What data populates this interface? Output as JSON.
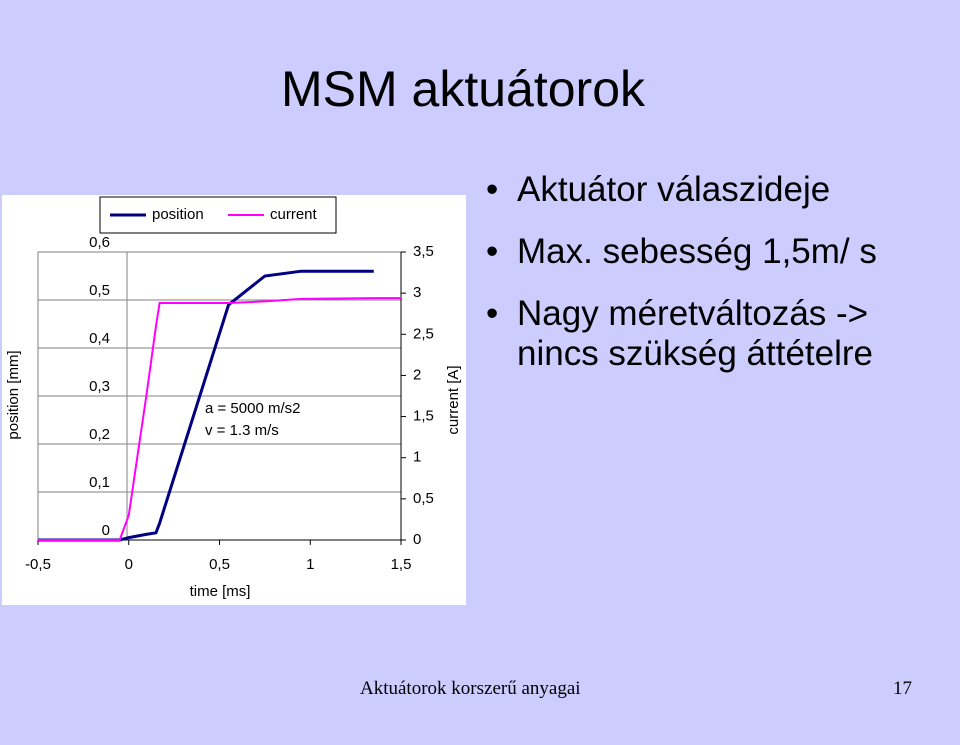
{
  "title": "MSM aktuátorok",
  "bullets": [
    "Aktuátor válaszideje",
    "Max. sebesség 1,5m/ s",
    "Nagy méretváltozás -> nincs szükség áttételre"
  ],
  "footer": {
    "text": "Aktuátorok korszerű anyagai",
    "page": "17"
  },
  "chart_data": {
    "type": "line",
    "xlabel": "time [ms]",
    "ylabel": "position [mm]",
    "y2label": "current [A]",
    "annotations": [
      "a = 5000 m/s2",
      "v = 1.3 m/s"
    ],
    "x": [
      -0.5,
      -0.05,
      0,
      0.1,
      0.15,
      0.17,
      0.55,
      0.75,
      0.95,
      1.35,
      1.5
    ],
    "series": [
      {
        "name": "position",
        "color": "#000080",
        "values": [
          0,
          0,
          0.005,
          0.012,
          0.015,
          0.035,
          0.49,
          0.55,
          0.56,
          0.56,
          null
        ]
      },
      {
        "name": "current",
        "color": "#ff00ff",
        "axis": "y2",
        "values": [
          0,
          0,
          0.3,
          1.8,
          2.6,
          2.88,
          2.88,
          2.9,
          2.93,
          2.94,
          2.94
        ]
      }
    ],
    "xlim": [
      -0.5,
      1.5
    ],
    "xticks": [
      {
        "value": -0.5,
        "label": "-0,5"
      },
      0,
      {
        "value": 0.5,
        "label": "0,5"
      },
      1,
      {
        "value": 1.5,
        "label": "1,5"
      }
    ],
    "ylim": [
      0,
      0.6
    ],
    "yticks": [
      0,
      {
        "value": 0.1,
        "label": "0,1"
      },
      {
        "value": 0.2,
        "label": "0,2"
      },
      {
        "value": 0.3,
        "label": "0,3"
      },
      {
        "value": 0.4,
        "label": "0,4"
      },
      {
        "value": 0.5,
        "label": "0,5"
      },
      {
        "value": 0.6,
        "label": "0,6"
      }
    ],
    "y2lim": [
      0,
      3.5
    ],
    "y2ticks": [
      0,
      {
        "value": 0.5,
        "label": "0,5"
      },
      1,
      {
        "value": 1.5,
        "label": "1,5"
      },
      2,
      {
        "value": 2.5,
        "label": "2,5"
      },
      3,
      {
        "value": 3.5,
        "label": "3,5"
      }
    ],
    "grid": true,
    "legend": "top"
  }
}
